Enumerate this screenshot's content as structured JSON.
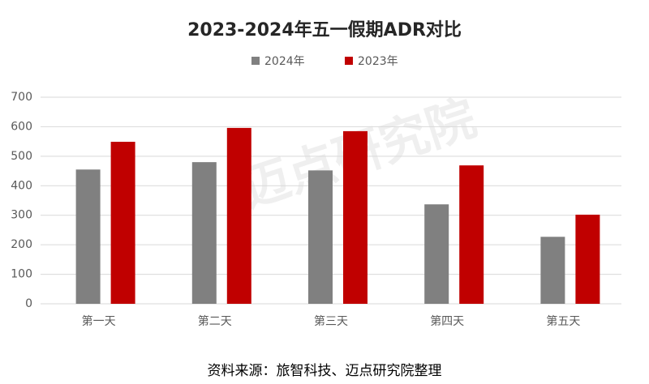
{
  "chart_data": {
    "type": "bar",
    "title": "2023-2024年五一假期ADR对比",
    "categories": [
      "第一天",
      "第二天",
      "第三天",
      "第四天",
      "第五天"
    ],
    "series": [
      {
        "name": "2024年",
        "color": "#808080",
        "values": [
          455,
          480,
          452,
          337,
          227
        ]
      },
      {
        "name": "2023年",
        "color": "#c00000",
        "values": [
          549,
          596,
          585,
          469,
          302
        ]
      }
    ],
    "ylim": [
      0,
      700
    ],
    "yticks": [
      0,
      100,
      200,
      300,
      400,
      500,
      600,
      700
    ],
    "grid": true,
    "legend": "top",
    "source": "资料来源：旅智科技、迈点研究院整理",
    "watermark": "迈点研究院"
  }
}
